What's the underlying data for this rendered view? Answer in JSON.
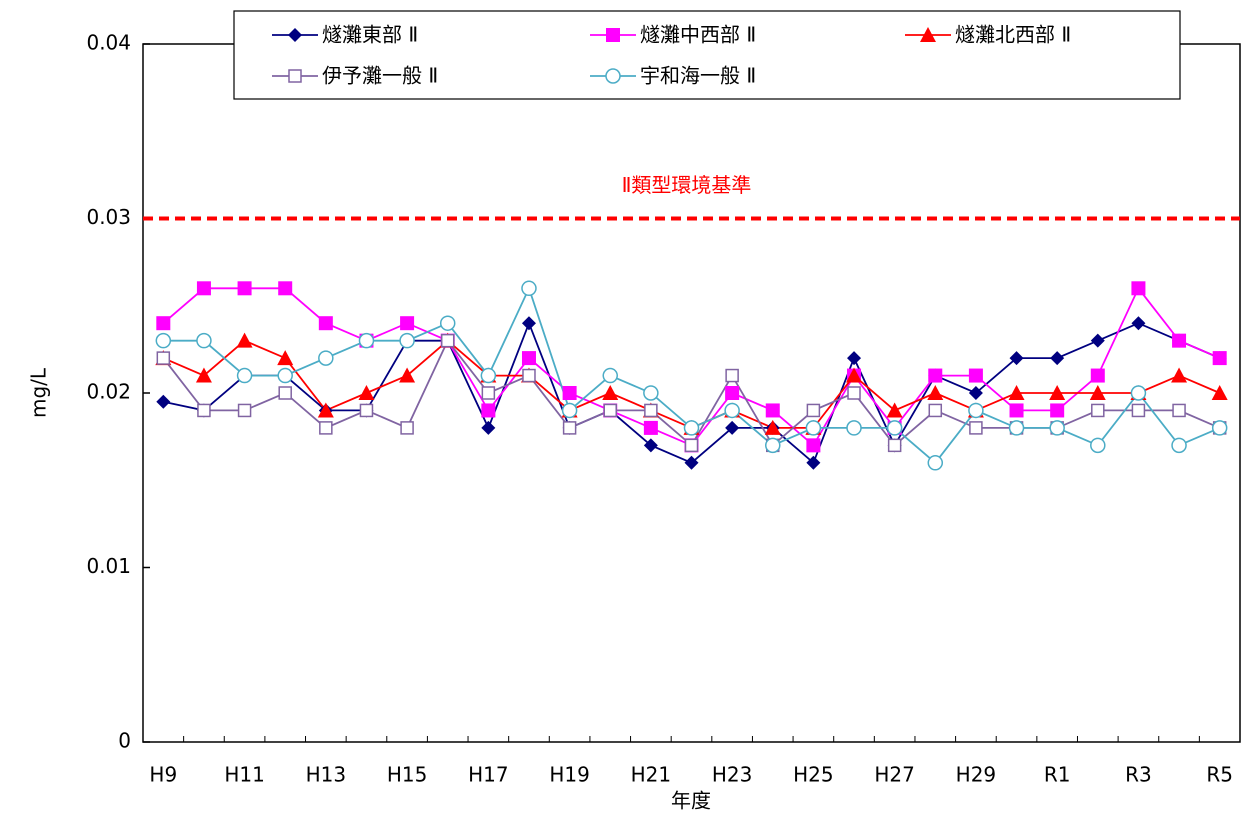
{
  "chart_data": {
    "type": "line",
    "x_label": "年度",
    "y_label": "mg/L",
    "categories": [
      "H9",
      null,
      "H11",
      null,
      "H13",
      null,
      "H15",
      null,
      "H17",
      null,
      "H19",
      null,
      "H21",
      null,
      "H23",
      null,
      "H25",
      null,
      "H27",
      null,
      "H29",
      null,
      "R1",
      null,
      "R3",
      null,
      "R5"
    ],
    "ylim": [
      0,
      0.04
    ],
    "yticks": [
      0,
      0.01,
      0.02,
      0.03,
      0.04
    ],
    "grid": false,
    "legend": "top",
    "reference_lines": [
      {
        "value": 0.03,
        "label": "Ⅱ類型環境基準",
        "color": "#ff0000"
      }
    ],
    "series": [
      {
        "name": "燧灘東部 Ⅱ",
        "color": "#000080",
        "marker": "diamond",
        "values": [
          0.0195,
          0.019,
          0.021,
          0.021,
          0.019,
          0.019,
          0.023,
          0.023,
          0.018,
          0.024,
          0.018,
          0.019,
          0.017,
          0.016,
          0.018,
          0.018,
          0.016,
          0.022,
          0.017,
          0.021,
          0.02,
          0.022,
          0.022,
          0.023,
          0.024,
          0.023,
          0.022
        ]
      },
      {
        "name": "燧灘中西部 Ⅱ",
        "color": "#ff00ff",
        "marker": "square",
        "values": [
          0.024,
          0.026,
          0.026,
          0.026,
          0.024,
          0.023,
          0.024,
          0.023,
          0.019,
          0.022,
          0.02,
          0.019,
          0.018,
          0.017,
          0.02,
          0.019,
          0.017,
          0.021,
          0.018,
          0.021,
          0.021,
          0.019,
          0.019,
          0.021,
          0.026,
          0.023,
          0.022
        ]
      },
      {
        "name": "燧灘北西部 Ⅱ",
        "color": "#ff0000",
        "marker": "triangle",
        "values": [
          0.022,
          0.021,
          0.023,
          0.022,
          0.019,
          0.02,
          0.021,
          0.023,
          0.021,
          0.021,
          0.019,
          0.02,
          0.019,
          0.018,
          0.019,
          0.018,
          0.018,
          0.021,
          0.019,
          0.02,
          0.019,
          0.02,
          0.02,
          0.02,
          0.02,
          0.021,
          0.02
        ]
      },
      {
        "name": "伊予灘一般 Ⅱ",
        "color": "#8064a2",
        "marker": "square-open",
        "values": [
          0.022,
          0.019,
          0.019,
          0.02,
          0.018,
          0.019,
          0.018,
          0.023,
          0.02,
          0.021,
          0.018,
          0.019,
          0.019,
          0.017,
          0.021,
          0.017,
          0.019,
          0.02,
          0.017,
          0.019,
          0.018,
          0.018,
          0.018,
          0.019,
          0.019,
          0.019,
          0.018
        ]
      },
      {
        "name": "宇和海一般 Ⅱ",
        "color": "#4bacc6",
        "marker": "circle-open",
        "values": [
          0.023,
          0.023,
          0.021,
          0.021,
          0.022,
          0.023,
          0.023,
          0.024,
          0.021,
          0.026,
          0.019,
          0.021,
          0.02,
          0.018,
          0.019,
          0.017,
          0.018,
          0.018,
          0.018,
          0.016,
          0.019,
          0.018,
          0.018,
          0.017,
          0.02,
          0.017,
          0.018
        ]
      }
    ]
  }
}
